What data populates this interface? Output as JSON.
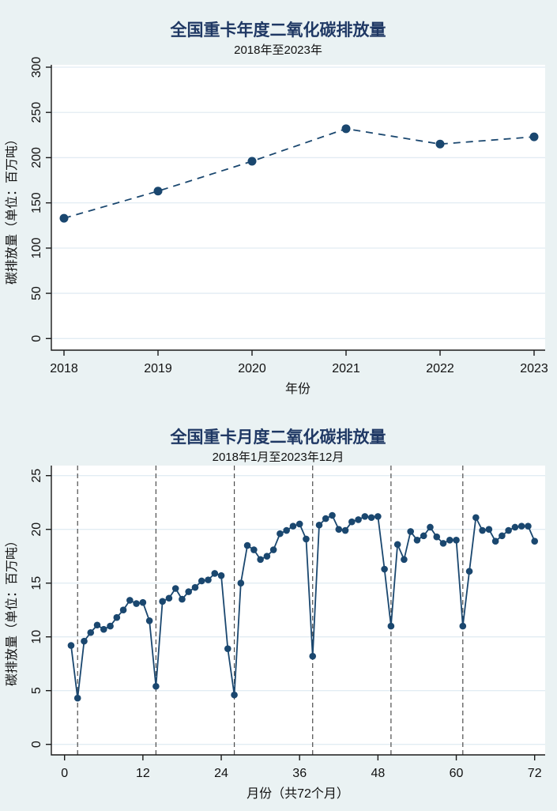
{
  "colors": {
    "background": "#eaf2f3",
    "plot_bg": "#ffffff",
    "series": "#1a476f",
    "title": "#1f3864",
    "grid": "#e2ecf3",
    "axis": "#1a1a1a",
    "ref_line": "#4d4d4d"
  },
  "chart_data": [
    {
      "type": "line",
      "title": "全国重卡年度二氧化碳排放量",
      "subtitle": "2018年至2023年",
      "xlabel": "年份",
      "ylabel": "碳排放量（单位：百万吨）",
      "x": [
        2018,
        2019,
        2020,
        2021,
        2022,
        2023
      ],
      "values": [
        133,
        163,
        196,
        232,
        215,
        223
      ],
      "xticks": [
        2018,
        2019,
        2020,
        2021,
        2022,
        2023
      ],
      "yticks": [
        0,
        50,
        100,
        150,
        200,
        250,
        300
      ],
      "xlim": [
        2018,
        2023
      ],
      "ylim": [
        0,
        300
      ],
      "line_style": "dashed",
      "markers": true,
      "grid": true,
      "legend_position": "none"
    },
    {
      "type": "line",
      "title": "全国重卡月度二氧化碳排放量",
      "subtitle": "2018年1月至2023年12月",
      "xlabel": "月份（共72个月）",
      "ylabel": "碳排放量（单位：百万吨）",
      "x": [
        1,
        2,
        3,
        4,
        5,
        6,
        7,
        8,
        9,
        10,
        11,
        12,
        13,
        14,
        15,
        16,
        17,
        18,
        19,
        20,
        21,
        22,
        23,
        24,
        25,
        26,
        27,
        28,
        29,
        30,
        31,
        32,
        33,
        34,
        35,
        36,
        37,
        38,
        39,
        40,
        41,
        42,
        43,
        44,
        45,
        46,
        47,
        48,
        49,
        50,
        51,
        52,
        53,
        54,
        55,
        56,
        57,
        58,
        59,
        60,
        61,
        62,
        63,
        64,
        65,
        66,
        67,
        68,
        69,
        70,
        71,
        72
      ],
      "values": [
        9.2,
        4.3,
        9.6,
        10.4,
        11.1,
        10.7,
        11.0,
        11.8,
        12.5,
        13.4,
        13.1,
        13.2,
        11.5,
        5.4,
        13.3,
        13.6,
        14.5,
        13.5,
        14.2,
        14.6,
        15.2,
        15.3,
        15.9,
        15.7,
        8.9,
        4.6,
        15.0,
        18.5,
        18.1,
        17.2,
        17.5,
        18.1,
        19.6,
        19.9,
        20.3,
        20.5,
        19.1,
        8.2,
        20.4,
        21.0,
        21.3,
        20.0,
        19.9,
        20.7,
        20.9,
        21.2,
        21.1,
        21.2,
        16.3,
        11.0,
        18.6,
        17.2,
        19.8,
        19.0,
        19.4,
        20.2,
        19.3,
        18.7,
        19.0,
        19.0,
        11.0,
        16.1,
        21.1,
        19.9,
        20.0,
        18.9,
        19.4,
        19.9,
        20.2,
        20.3,
        20.3,
        18.9
      ],
      "xticks": [
        0,
        12,
        24,
        36,
        48,
        60,
        72
      ],
      "yticks": [
        0,
        5,
        10,
        15,
        20,
        25
      ],
      "xlim": [
        0,
        72
      ],
      "ylim": [
        0,
        25
      ],
      "reference_lines_x": [
        2,
        14,
        26,
        38,
        50,
        61
      ],
      "line_style": "solid",
      "markers": true,
      "grid": true,
      "legend_position": "none"
    }
  ]
}
